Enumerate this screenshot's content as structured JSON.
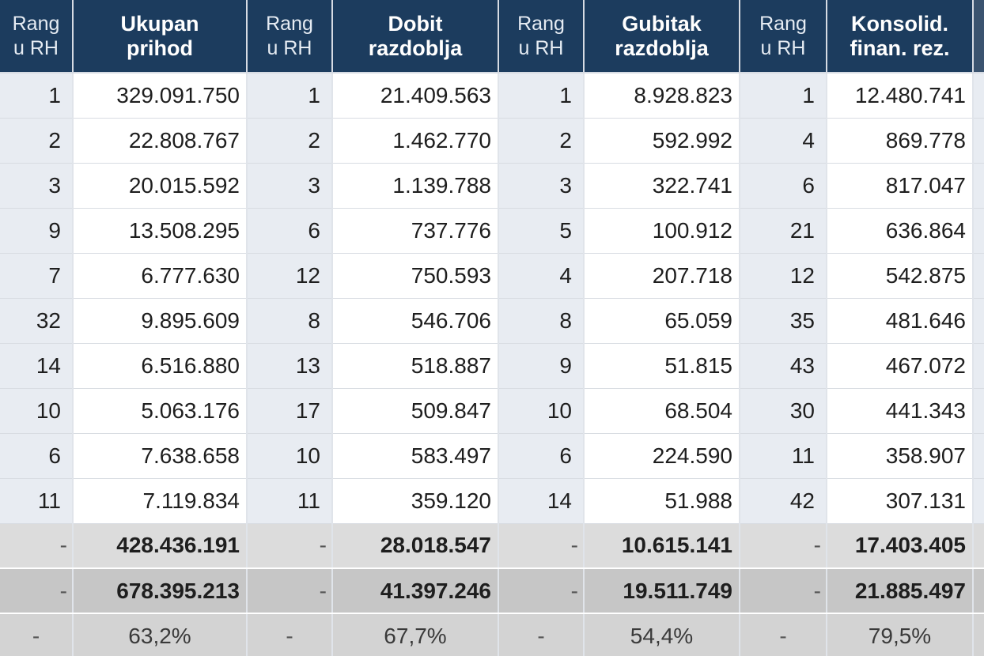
{
  "table": {
    "headers": {
      "rang": [
        "Rang",
        "u RH"
      ],
      "ukupan_prihod": [
        "Ukupan",
        "prihod"
      ],
      "dobit": [
        "Dobit",
        "razdoblja"
      ],
      "gubitak": [
        "Gubitak",
        "razdoblja"
      ],
      "konsolid": [
        "Konsolid.",
        "finan. rez."
      ]
    },
    "rows": [
      [
        "1",
        "329.091.750",
        "1",
        "21.409.563",
        "1",
        "8.928.823",
        "1",
        "12.480.741"
      ],
      [
        "2",
        "22.808.767",
        "2",
        "1.462.770",
        "2",
        "592.992",
        "4",
        "869.778"
      ],
      [
        "3",
        "20.015.592",
        "3",
        "1.139.788",
        "3",
        "322.741",
        "6",
        "817.047"
      ],
      [
        "9",
        "13.508.295",
        "6",
        "737.776",
        "5",
        "100.912",
        "21",
        "636.864"
      ],
      [
        "7",
        "6.777.630",
        "12",
        "750.593",
        "4",
        "207.718",
        "12",
        "542.875"
      ],
      [
        "32",
        "9.895.609",
        "8",
        "546.706",
        "8",
        "65.059",
        "35",
        "481.646"
      ],
      [
        "14",
        "6.516.880",
        "13",
        "518.887",
        "9",
        "51.815",
        "43",
        "467.072"
      ],
      [
        "10",
        "5.063.176",
        "17",
        "509.847",
        "10",
        "68.504",
        "30",
        "441.343"
      ],
      [
        "6",
        "7.638.658",
        "10",
        "583.497",
        "6",
        "224.590",
        "11",
        "358.907"
      ],
      [
        "11",
        "7.119.834",
        "11",
        "359.120",
        "14",
        "51.988",
        "42",
        "307.131"
      ]
    ],
    "summary": [
      [
        "-",
        "428.436.191",
        "-",
        "28.018.547",
        "-",
        "10.615.141",
        "-",
        "17.403.405"
      ],
      [
        "-",
        "678.395.213",
        "-",
        "41.397.246",
        "-",
        "19.511.749",
        "-",
        "21.885.497"
      ],
      [
        "-",
        "63,2%",
        "-",
        "67,7%",
        "-",
        "54,4%",
        "-",
        "79,5%"
      ]
    ]
  }
}
